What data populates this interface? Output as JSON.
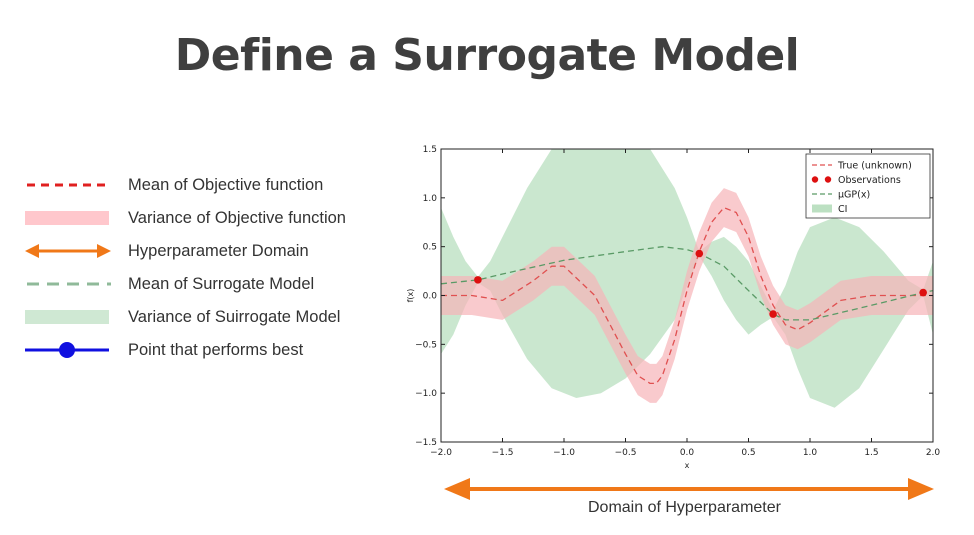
{
  "page": {
    "title": "Define a Surrogate Model"
  },
  "legend": {
    "items": [
      {
        "label": "Mean of Objective function",
        "swatch": "red-dashed-line",
        "color": "#e02020"
      },
      {
        "label": "Variance of Objective function",
        "swatch": "pink-band",
        "color": "#ffc7cc"
      },
      {
        "label": "Hyperparameter Domain",
        "swatch": "orange-double-arrow",
        "color": "#f07818"
      },
      {
        "label": "Mean of Surrogate Model",
        "swatch": "green-dashed-line",
        "color": "#8fba99"
      },
      {
        "label": "Variance of Suirrogate Model",
        "swatch": "green-band",
        "color": "#cfe8d3"
      },
      {
        "label": "Point that performs best",
        "swatch": "blue-point-line",
        "color": "#1010e0"
      }
    ]
  },
  "domain_arrow": {
    "label": "Domain of Hyperparameter",
    "color": "#f07818"
  },
  "chart_data": {
    "type": "line",
    "xlabel": "x",
    "ylabel": "f(x)",
    "xlim": [
      -2.0,
      2.0
    ],
    "ylim": [
      -1.5,
      1.5
    ],
    "xticks": [
      "−2.0",
      "−1.5",
      "−1.0",
      "−0.5",
      "0.0",
      "0.5",
      "1.0",
      "1.5",
      "2.0"
    ],
    "yticks": [
      "1.5",
      "1.0",
      "0.5",
      "0.0",
      "−0.5",
      "−1.0",
      "−1.5"
    ],
    "legend_position": "top-right",
    "colors": {
      "true": "#e05050",
      "true_band": "#f7b4b8",
      "observations": "#dd1010",
      "gp_mean": "#5a9a66",
      "ci": "#9fd3a8"
    },
    "series": [
      {
        "name": "True (unknown)",
        "kind": "dashed-line",
        "x": [
          -2.0,
          -1.75,
          -1.5,
          -1.25,
          -1.1,
          -1.0,
          -0.75,
          -0.5,
          -0.4,
          -0.3,
          -0.25,
          -0.2,
          -0.1,
          0.0,
          0.1,
          0.2,
          0.3,
          0.4,
          0.5,
          0.6,
          0.7,
          0.8,
          0.9,
          1.0,
          1.25,
          1.5,
          1.75,
          2.0
        ],
        "y": [
          0.0,
          0.0,
          -0.05,
          0.15,
          0.3,
          0.3,
          0.0,
          -0.6,
          -0.82,
          -0.9,
          -0.9,
          -0.82,
          -0.45,
          0.05,
          0.45,
          0.75,
          0.9,
          0.85,
          0.6,
          0.2,
          -0.1,
          -0.3,
          -0.35,
          -0.28,
          -0.05,
          0.0,
          0.0,
          0.0
        ]
      },
      {
        "name": "Observations",
        "kind": "points",
        "x": [
          -1.7,
          0.1,
          0.7,
          1.92
        ],
        "y": [
          0.16,
          0.43,
          -0.19,
          0.03
        ]
      },
      {
        "name": "μGP(x)",
        "kind": "dashed-line",
        "x": [
          -2.0,
          -1.7,
          -1.5,
          -1.0,
          -0.5,
          -0.2,
          0.0,
          0.1,
          0.3,
          0.5,
          0.7,
          0.8,
          1.0,
          1.5,
          1.92,
          2.0
        ],
        "y": [
          0.12,
          0.16,
          0.22,
          0.36,
          0.45,
          0.5,
          0.47,
          0.43,
          0.3,
          0.05,
          -0.19,
          -0.25,
          -0.25,
          -0.1,
          0.03,
          0.05
        ]
      },
      {
        "name": "CI",
        "kind": "band",
        "x": [
          -2.0,
          -1.9,
          -1.8,
          -1.7,
          -1.6,
          -1.5,
          -1.3,
          -1.1,
          -0.9,
          -0.7,
          -0.5,
          -0.3,
          -0.1,
          0.0,
          0.1,
          0.2,
          0.3,
          0.4,
          0.5,
          0.6,
          0.7,
          0.8,
          0.9,
          1.0,
          1.2,
          1.4,
          1.6,
          1.8,
          1.92,
          2.0
        ],
        "lower": [
          -0.6,
          -0.4,
          -0.1,
          0.13,
          0.05,
          -0.2,
          -0.65,
          -0.95,
          -1.05,
          -1.0,
          -0.85,
          -0.6,
          -0.25,
          0.1,
          0.4,
          0.2,
          -0.05,
          -0.25,
          -0.4,
          -0.3,
          -0.22,
          -0.4,
          -0.75,
          -1.05,
          -1.15,
          -0.95,
          -0.55,
          -0.15,
          0.0,
          -0.4
        ],
        "upper": [
          0.9,
          0.6,
          0.35,
          0.19,
          0.35,
          0.6,
          1.1,
          1.5,
          1.5,
          1.5,
          1.5,
          1.5,
          1.1,
          0.8,
          0.45,
          0.55,
          0.6,
          0.5,
          0.35,
          0.1,
          -0.15,
          0.1,
          0.45,
          0.7,
          0.8,
          0.7,
          0.45,
          0.15,
          0.06,
          0.35
        ]
      },
      {
        "name": "True variance band",
        "kind": "band",
        "x": [
          -2.0,
          -1.75,
          -1.5,
          -1.25,
          -1.1,
          -1.0,
          -0.75,
          -0.5,
          -0.4,
          -0.3,
          -0.25,
          -0.2,
          -0.1,
          0.0,
          0.1,
          0.2,
          0.3,
          0.4,
          0.5,
          0.6,
          0.7,
          0.8,
          0.9,
          1.0,
          1.25,
          1.5,
          1.75,
          2.0
        ],
        "lower": [
          -0.2,
          -0.2,
          -0.25,
          -0.05,
          0.1,
          0.1,
          -0.2,
          -0.8,
          -1.02,
          -1.1,
          -1.1,
          -1.02,
          -0.65,
          -0.15,
          0.25,
          0.55,
          0.7,
          0.65,
          0.4,
          0.0,
          -0.3,
          -0.5,
          -0.55,
          -0.48,
          -0.25,
          -0.2,
          -0.2,
          -0.2
        ],
        "upper": [
          0.2,
          0.2,
          0.15,
          0.35,
          0.5,
          0.5,
          0.2,
          -0.4,
          -0.62,
          -0.7,
          -0.7,
          -0.62,
          -0.25,
          0.25,
          0.65,
          0.95,
          1.1,
          1.05,
          0.8,
          0.4,
          0.1,
          -0.1,
          -0.15,
          -0.08,
          0.15,
          0.2,
          0.2,
          0.2
        ]
      }
    ],
    "legend": [
      "True (unknown)",
      "Observations",
      "μGP(x)",
      "CI"
    ]
  }
}
